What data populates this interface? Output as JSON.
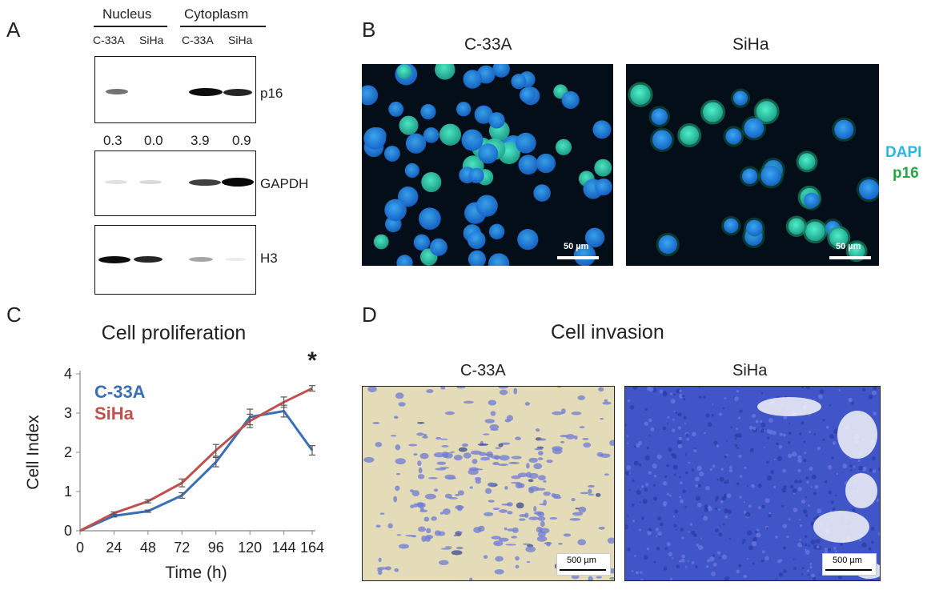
{
  "panel_a": {
    "letter": "A",
    "groups": [
      "Nucleus",
      "Cytoplasm"
    ],
    "lanes": [
      "C-33A",
      "SiHa",
      "C-33A",
      "SiHa"
    ],
    "blots": [
      {
        "label": "p16",
        "band_intensity": [
          0.35,
          0.0,
          1.0,
          0.8
        ]
      },
      {
        "label": "GAPDH",
        "band_intensity": [
          0.1,
          0.12,
          0.75,
          1.0
        ]
      },
      {
        "label": "H3",
        "band_intensity": [
          1.0,
          0.85,
          0.35,
          0.08
        ]
      }
    ],
    "quant": [
      "0.3",
      "0.0",
      "3.9",
      "0.9"
    ]
  },
  "panel_b": {
    "letter": "B",
    "images": [
      {
        "title": "C-33A",
        "scale": "50 µm"
      },
      {
        "title": "SiHa",
        "scale": "50 µm"
      }
    ],
    "legend": [
      {
        "text": "DAPI",
        "color": "#29b6e6"
      },
      {
        "text": "p16",
        "color": "#27a844"
      }
    ]
  },
  "panel_c": {
    "letter": "C",
    "significance": "*"
  },
  "panel_d": {
    "letter": "D",
    "title": "Cell invasion",
    "images": [
      {
        "title": "C-33A",
        "scale": "500 µm"
      },
      {
        "title": "SiHa",
        "scale": "500 µm"
      }
    ]
  },
  "chart_data": {
    "type": "line",
    "title": "Cell proliferation",
    "xlabel": "Time (h)",
    "ylabel": "Cell Index",
    "x": [
      0,
      24,
      48,
      72,
      96,
      120,
      144,
      164
    ],
    "ylim": [
      0,
      4
    ],
    "yticks": [
      0,
      1,
      2,
      3,
      4
    ],
    "legend_placement": "top-left",
    "series": [
      {
        "name": "C-33A",
        "color": "#3a6fb5",
        "values": [
          0,
          0.38,
          0.5,
          0.9,
          1.75,
          2.9,
          3.05,
          2.05
        ],
        "errors": [
          0,
          0.03,
          0.03,
          0.07,
          0.12,
          0.2,
          0.15,
          0.12
        ]
      },
      {
        "name": "SiHa",
        "color": "#c0504d",
        "values": [
          0,
          0.45,
          0.75,
          1.22,
          2.05,
          2.8,
          3.28,
          3.63
        ],
        "errors": [
          0,
          0.03,
          0.04,
          0.1,
          0.15,
          0.17,
          0.13,
          0.07
        ]
      }
    ],
    "grid": false
  }
}
